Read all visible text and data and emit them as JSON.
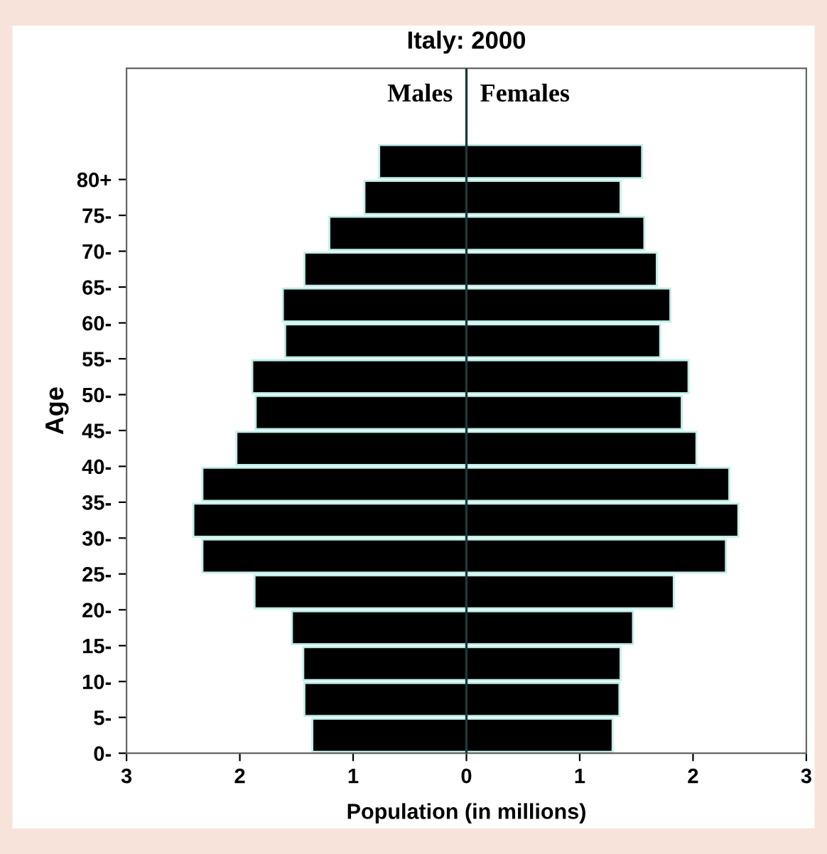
{
  "chart_data": {
    "type": "bar",
    "orientation": "horizontal",
    "stacked": true,
    "title": "Italy: 2000",
    "xlabel": "Population (in millions)",
    "ylabel": "Age",
    "categories": [
      "80+",
      "75-",
      "70-",
      "65-",
      "60-",
      "55-",
      "50-",
      "45-",
      "40-",
      "35-",
      "30-",
      "25-",
      "20-",
      "15-",
      "10-",
      "5-",
      "0-"
    ],
    "series": [
      {
        "name": "Males",
        "color": "#000000",
        "values": [
          -0.77,
          -0.9,
          -1.21,
          -1.43,
          -1.62,
          -1.6,
          -1.89,
          -1.86,
          -2.03,
          -2.33,
          -2.41,
          -2.33,
          -1.87,
          -1.54,
          -1.44,
          -1.43,
          -1.36
        ]
      },
      {
        "name": "Females",
        "color": "#000000",
        "values": [
          1.55,
          1.36,
          1.57,
          1.68,
          1.8,
          1.71,
          1.96,
          1.9,
          2.03,
          2.32,
          2.4,
          2.29,
          1.83,
          1.47,
          1.36,
          1.35,
          1.29
        ]
      }
    ],
    "xlim": [
      -3,
      3
    ],
    "xticks": [
      {
        "value": -3,
        "label": "3"
      },
      {
        "value": -2,
        "label": "2"
      },
      {
        "value": -1,
        "label": "1"
      },
      0,
      1,
      2,
      3
    ],
    "ref_lines": [
      {
        "axis": "x",
        "value": 0,
        "color": "#1a3a3a"
      }
    ],
    "grid": false,
    "legend": false
  }
}
